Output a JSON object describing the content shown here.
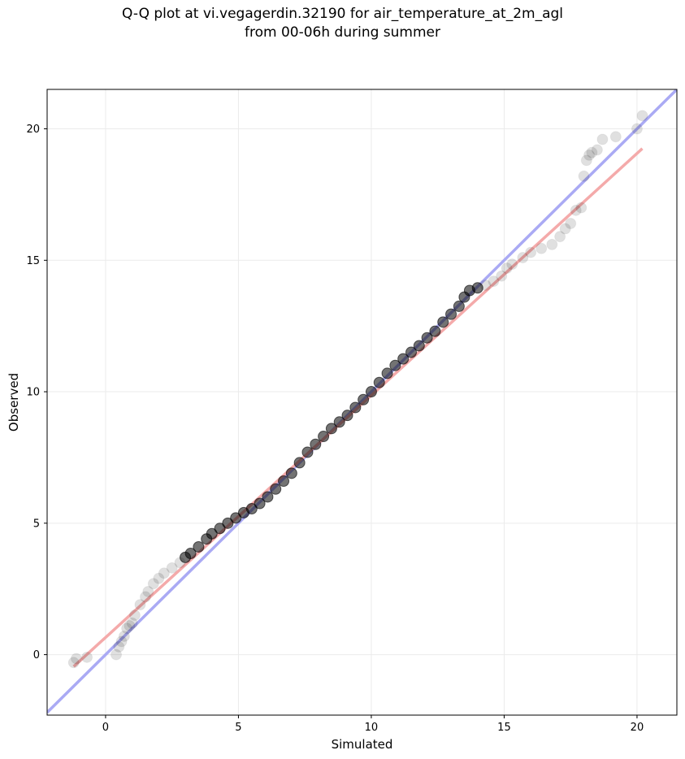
{
  "chart_data": {
    "type": "scatter",
    "title_line1": "Q-Q plot at vi.vegagerdin.32190 for air_temperature_at_2m_agl",
    "title_line2": "from 00-06h during summer",
    "xlabel": "Simulated",
    "ylabel": "Observed",
    "xlim": [
      -2.2,
      21.5
    ],
    "ylim": [
      -2.3,
      21.5
    ],
    "xticks": [
      0,
      5,
      10,
      15,
      20
    ],
    "yticks": [
      0,
      5,
      10,
      15,
      20
    ],
    "grid": true,
    "colors": {
      "points": "#000000",
      "identity_line": "#aaaaf4",
      "fit_line": "#f4aaaa",
      "grid": "#ebebeb",
      "frame": "#000000"
    },
    "series": [
      {
        "name": "quantiles",
        "points": [
          [
            -1.2,
            -0.3
          ],
          [
            -1.1,
            -0.15
          ],
          [
            -0.7,
            -0.1
          ],
          [
            0.4,
            0.0
          ],
          [
            0.5,
            0.3
          ],
          [
            0.6,
            0.5
          ],
          [
            0.7,
            0.7
          ],
          [
            0.8,
            1.0
          ],
          [
            0.9,
            1.1
          ],
          [
            1.0,
            1.2
          ],
          [
            1.1,
            1.5
          ],
          [
            1.3,
            1.9
          ],
          [
            1.5,
            2.2
          ],
          [
            1.6,
            2.4
          ],
          [
            1.8,
            2.7
          ],
          [
            2.0,
            2.9
          ],
          [
            2.2,
            3.1
          ],
          [
            2.5,
            3.3
          ],
          [
            2.8,
            3.5
          ],
          [
            3.0,
            3.7
          ],
          [
            3.2,
            3.85
          ],
          [
            3.5,
            4.1
          ],
          [
            3.8,
            4.4
          ],
          [
            4.0,
            4.6
          ],
          [
            4.3,
            4.8
          ],
          [
            4.6,
            5.0
          ],
          [
            4.9,
            5.2
          ],
          [
            5.2,
            5.4
          ],
          [
            5.5,
            5.55
          ],
          [
            5.8,
            5.75
          ],
          [
            6.1,
            6.0
          ],
          [
            6.4,
            6.3
          ],
          [
            6.7,
            6.6
          ],
          [
            7.0,
            6.9
          ],
          [
            7.3,
            7.3
          ],
          [
            7.6,
            7.7
          ],
          [
            7.9,
            8.0
          ],
          [
            8.2,
            8.3
          ],
          [
            8.5,
            8.6
          ],
          [
            8.8,
            8.85
          ],
          [
            9.1,
            9.1
          ],
          [
            9.4,
            9.4
          ],
          [
            9.7,
            9.7
          ],
          [
            10.0,
            10.0
          ],
          [
            10.3,
            10.35
          ],
          [
            10.6,
            10.7
          ],
          [
            10.9,
            11.0
          ],
          [
            11.2,
            11.25
          ],
          [
            11.5,
            11.5
          ],
          [
            11.8,
            11.75
          ],
          [
            12.1,
            12.05
          ],
          [
            12.4,
            12.3
          ],
          [
            12.7,
            12.65
          ],
          [
            13.0,
            12.95
          ],
          [
            13.3,
            13.25
          ],
          [
            13.5,
            13.6
          ],
          [
            13.7,
            13.85
          ],
          [
            14.0,
            13.95
          ],
          [
            14.3,
            14.05
          ],
          [
            14.6,
            14.2
          ],
          [
            14.9,
            14.4
          ],
          [
            15.1,
            14.7
          ],
          [
            15.3,
            14.85
          ],
          [
            15.7,
            15.1
          ],
          [
            16.0,
            15.3
          ],
          [
            16.4,
            15.45
          ],
          [
            16.8,
            15.6
          ],
          [
            17.1,
            15.9
          ],
          [
            17.3,
            16.2
          ],
          [
            17.5,
            16.4
          ],
          [
            17.7,
            16.9
          ],
          [
            17.9,
            17.0
          ],
          [
            18.0,
            18.2
          ],
          [
            18.1,
            18.8
          ],
          [
            18.2,
            19.0
          ],
          [
            18.3,
            19.1
          ],
          [
            18.5,
            19.2
          ],
          [
            18.7,
            19.6
          ],
          [
            19.2,
            19.7
          ],
          [
            20.0,
            20.0
          ],
          [
            20.2,
            20.5
          ]
        ]
      }
    ],
    "identity_line": [
      [
        -2.2,
        -2.2
      ],
      [
        21.5,
        21.5
      ]
    ],
    "fit_line": [
      [
        -1.2,
        -0.45
      ],
      [
        20.2,
        19.25
      ]
    ]
  }
}
